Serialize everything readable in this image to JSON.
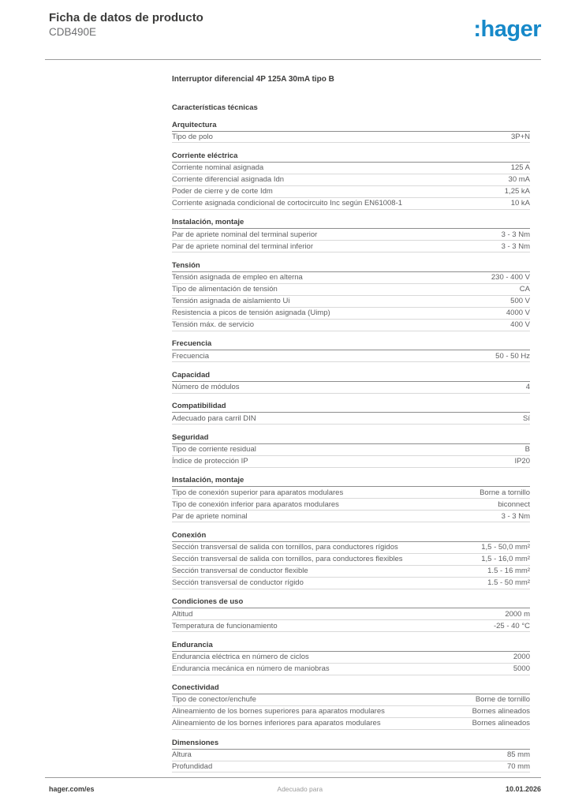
{
  "header": {
    "doc_type": "Ficha de datos de producto",
    "product_code": "CDB490E",
    "logo": {
      "prefix": ":",
      "name": "hager",
      "brand_color": "#1789c9"
    }
  },
  "main": {
    "product_title": "Interruptor diferencial 4P 125A 30mA tipo B",
    "subtitle": "Características técnicas"
  },
  "sections": [
    {
      "title": "Arquitectura",
      "rows": [
        {
          "label": "Tipo de polo",
          "value": "3P+N"
        }
      ]
    },
    {
      "title": "Corriente eléctrica",
      "rows": [
        {
          "label": "Corriente nominal asignada",
          "value": "125 A"
        },
        {
          "label": "Corriente diferencial asignada Idn",
          "value": "30 mA"
        },
        {
          "label": "Poder de cierre y de corte Idm",
          "value": "1,25 kA"
        },
        {
          "label": "Corriente asignada condicional de cortocircuito Inc según EN61008-1",
          "value": "10 kA"
        }
      ]
    },
    {
      "title": "Instalación, montaje",
      "rows": [
        {
          "label": "Par de apriete nominal del terminal superior",
          "value": "3 - 3 Nm"
        },
        {
          "label": "Par de apriete nominal del terminal inferior",
          "value": "3 - 3 Nm"
        }
      ]
    },
    {
      "title": "Tensión",
      "rows": [
        {
          "label": "Tensión asignada de empleo en alterna",
          "value": "230 - 400 V"
        },
        {
          "label": "Tipo de alimentación de tensión",
          "value": "CA"
        },
        {
          "label": "Tensión asignada de aislamiento Ui",
          "value": "500 V"
        },
        {
          "label": "Resistencia a picos de tensión asignada (Uimp)",
          "value": "4000 V"
        },
        {
          "label": "Tensión máx. de servicio",
          "value": "400 V"
        }
      ]
    },
    {
      "title": "Frecuencia",
      "rows": [
        {
          "label": "Frecuencia",
          "value": "50 - 50 Hz"
        }
      ]
    },
    {
      "title": "Capacidad",
      "rows": [
        {
          "label": "Número de módulos",
          "value": "4"
        }
      ]
    },
    {
      "title": "Compatibilidad",
      "rows": [
        {
          "label": "Adecuado para carril DIN",
          "value": "Sí"
        }
      ]
    },
    {
      "title": "Seguridad",
      "rows": [
        {
          "label": "Tipo de corriente residual",
          "value": "B"
        },
        {
          "label": "Índice de protección IP",
          "value": "IP20"
        }
      ]
    },
    {
      "title": "Instalación, montaje",
      "rows": [
        {
          "label": "Tipo de conexión superior para aparatos modulares",
          "value": "Borne a tornillo"
        },
        {
          "label": "Tipo de conexión inferior para aparatos modulares",
          "value": "biconnect"
        },
        {
          "label": "Par de apriete nominal",
          "value": "3 - 3 Nm"
        }
      ]
    },
    {
      "title": "Conexión",
      "rows": [
        {
          "label": "Sección transversal de salida con tornillos, para conductores rígidos",
          "value": "1,5 - 50,0 mm²"
        },
        {
          "label": "Sección transversal de salida con tornillos, para conductores flexibles",
          "value": "1,5 - 16,0 mm²"
        },
        {
          "label": "Sección transversal de conductor flexible",
          "value": "1.5 - 16 mm²"
        },
        {
          "label": "Sección transversal de conductor rígido",
          "value": "1.5 - 50 mm²"
        }
      ]
    },
    {
      "title": "Condiciones de uso",
      "rows": [
        {
          "label": "Altitud",
          "value": "2000 m"
        },
        {
          "label": "Temperatura de funcionamiento",
          "value": "-25 - 40 °C"
        }
      ]
    },
    {
      "title": "Endurancia",
      "rows": [
        {
          "label": "Endurancia eléctrica en número de ciclos",
          "value": "2000"
        },
        {
          "label": "Endurancia mecánica en número de maniobras",
          "value": "5000"
        }
      ]
    },
    {
      "title": "Conectividad",
      "rows": [
        {
          "label": "Tipo de conector/enchufe",
          "value": "Borne de tornillo"
        },
        {
          "label": "Alineamiento de los bornes superiores para aparatos modulares",
          "value": "Bornes alineados"
        },
        {
          "label": "Alineamiento de los bornes inferiores para aparatos modulares",
          "value": "Bornes alineados"
        }
      ]
    },
    {
      "title": "Dimensiones",
      "rows": [
        {
          "label": "Altura",
          "value": "85 mm"
        },
        {
          "label": "Profundidad",
          "value": "70 mm"
        }
      ]
    }
  ],
  "footer": {
    "left": "hager.com/es",
    "center": "Adecuado para",
    "right": "10.01.2026"
  }
}
